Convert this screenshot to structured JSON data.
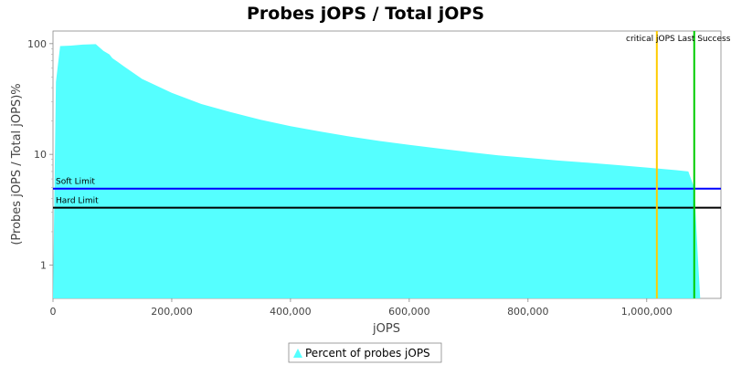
{
  "chart_data": {
    "type": "area",
    "title": "Probes jOPS / Total jOPS",
    "xlabel": "jOPS",
    "ylabel": "(Probes jOPS / Total jOPS)%",
    "y_scale": "log",
    "xlim": [
      0,
      1125000
    ],
    "ylim": [
      0.5,
      130
    ],
    "x_ticks": [
      {
        "value": 0,
        "label": "0"
      },
      {
        "value": 200000,
        "label": "200,000"
      },
      {
        "value": 400000,
        "label": "400,000"
      },
      {
        "value": 600000,
        "label": "600,000"
      },
      {
        "value": 800000,
        "label": "800,000"
      },
      {
        "value": 1000000,
        "label": "1,000,000"
      }
    ],
    "y_ticks": [
      {
        "value": 1,
        "label": "1"
      },
      {
        "value": 10,
        "label": "10"
      },
      {
        "value": 100,
        "label": "100"
      }
    ],
    "series": [
      {
        "name": "Percent of probes jOPS",
        "color": "#55ffff",
        "x": [
          0,
          5000,
          12000,
          30000,
          50000,
          72000,
          85000,
          95000,
          100000,
          120000,
          150000,
          200000,
          250000,
          300000,
          350000,
          400000,
          450000,
          500000,
          550000,
          600000,
          650000,
          700000,
          750000,
          800000,
          850000,
          900000,
          950000,
          1000000,
          1050000,
          1070000,
          1080000,
          1086000,
          1090000
        ],
        "y": [
          0.5,
          45,
          95,
          96,
          98,
          99,
          86,
          80,
          74,
          62,
          48,
          36,
          28.5,
          24,
          20.5,
          18,
          16.1,
          14.5,
          13.2,
          12.2,
          11.3,
          10.5,
          9.8,
          9.3,
          8.8,
          8.4,
          8.0,
          7.6,
          7.2,
          7.0,
          5.0,
          1.2,
          0.5
        ]
      }
    ],
    "reference_lines": [
      {
        "orientation": "horizontal",
        "name": "Soft Limit",
        "y": 4.9,
        "color": "#0000ff"
      },
      {
        "orientation": "horizontal",
        "name": "Hard Limit",
        "y": 3.3,
        "color": "#000000"
      },
      {
        "orientation": "vertical",
        "name": "critical jOPS",
        "x": 1017000,
        "color": "#ffcc00"
      },
      {
        "orientation": "vertical",
        "name": "Last Success jOPS",
        "x": 1080000,
        "color": "#00cc00"
      }
    ],
    "vertical_label_text": "critical jOPS Last Success jOPS for ...",
    "grid": false,
    "legend_position": "bottom-center"
  }
}
